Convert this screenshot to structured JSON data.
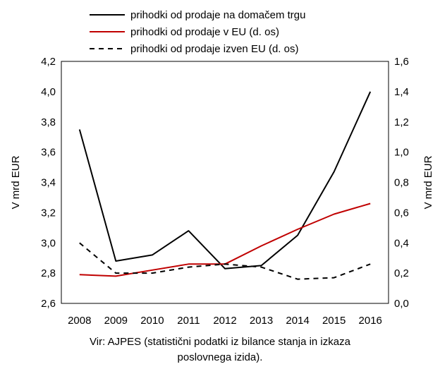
{
  "chart_data": {
    "type": "line",
    "x": [
      "2008",
      "2009",
      "2010",
      "2011",
      "2012",
      "2013",
      "2014",
      "2015",
      "2016"
    ],
    "series": [
      {
        "name": "prihodki od prodaje na domačem trgu",
        "axis": "left",
        "color": "#000000",
        "dash": "solid",
        "values": [
          3.75,
          2.88,
          2.92,
          3.08,
          2.83,
          2.85,
          3.05,
          3.47,
          4.0
        ]
      },
      {
        "name": "prihodki od prodaje v EU (d. os)",
        "axis": "right",
        "color": "#c00000",
        "dash": "solid",
        "values": [
          0.19,
          0.18,
          0.22,
          0.26,
          0.26,
          0.38,
          0.49,
          0.59,
          0.66
        ]
      },
      {
        "name": "prihodki od prodaje izven EU (d. os)",
        "axis": "right",
        "color": "#000000",
        "dash": "dashed",
        "values": [
          0.4,
          0.2,
          0.2,
          0.24,
          0.26,
          0.24,
          0.16,
          0.17,
          0.26
        ]
      }
    ],
    "ylabel": "V mrd EUR",
    "y2label": "V mrd EUR",
    "ylim": [
      2.6,
      4.2
    ],
    "y2lim": [
      0.0,
      1.6
    ],
    "yticks": [
      "2,6",
      "2,8",
      "3,0",
      "3,2",
      "3,4",
      "3,6",
      "3,8",
      "4,0",
      "4,2"
    ],
    "y2ticks": [
      "0,0",
      "0,2",
      "0,4",
      "0,6",
      "0,8",
      "1,0",
      "1,2",
      "1,4",
      "1,6"
    ],
    "grid": false,
    "legend": "top"
  },
  "source_line1": "Vir: AJPES (statistični podatki iz bilance stanja in izkaza",
  "source_line2": "poslovnega izida)."
}
